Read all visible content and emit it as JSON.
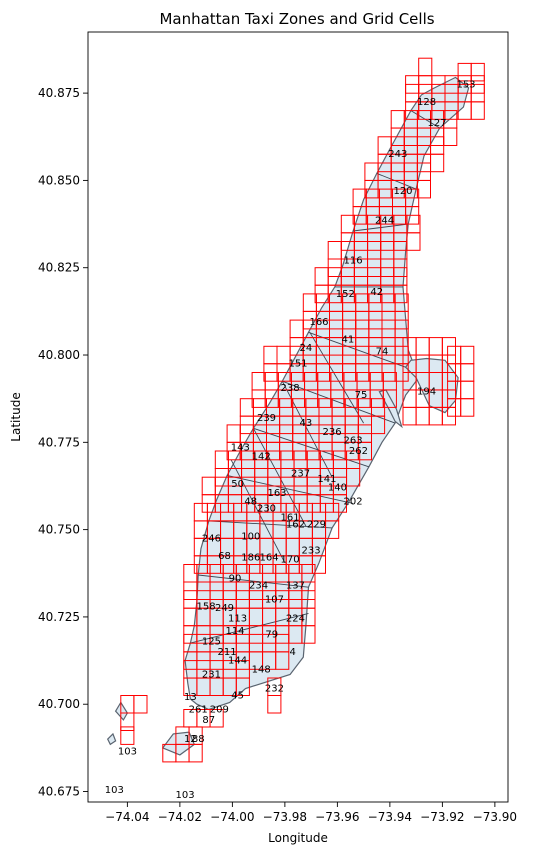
{
  "figure": {
    "title": "Manhattan Taxi Zones and Grid Cells",
    "xlabel": "Longitude",
    "ylabel": "Latitude"
  },
  "chart_data": {
    "type": "map",
    "title": "Manhattan Taxi Zones and Grid Cells",
    "xlabel": "Longitude",
    "ylabel": "Latitude",
    "xlim": [
      -74.055,
      -73.895
    ],
    "ylim": [
      40.672,
      40.8925
    ],
    "xticks": [
      {
        "value": -74.04,
        "label": "−74.04"
      },
      {
        "value": -74.02,
        "label": "−74.02"
      },
      {
        "value": -74.0,
        "label": "−74.00"
      },
      {
        "value": -73.98,
        "label": "−73.98"
      },
      {
        "value": -73.96,
        "label": "−73.96"
      },
      {
        "value": -73.94,
        "label": "−73.94"
      },
      {
        "value": -73.92,
        "label": "−73.92"
      },
      {
        "value": -73.9,
        "label": "−73.90"
      }
    ],
    "yticks": [
      {
        "value": 40.675,
        "label": "40.675"
      },
      {
        "value": 40.7,
        "label": "40.700"
      },
      {
        "value": 40.725,
        "label": "40.725"
      },
      {
        "value": 40.75,
        "label": "40.750"
      },
      {
        "value": 40.775,
        "label": "40.775"
      },
      {
        "value": 40.8,
        "label": "40.800"
      },
      {
        "value": 40.825,
        "label": "40.825"
      },
      {
        "value": 40.85,
        "label": "40.850"
      },
      {
        "value": 40.875,
        "label": "40.875"
      }
    ],
    "grid_cell_color": "#ff0000",
    "zone_fill_color": "#dce9f2",
    "zone_edge_color": "#5a6470",
    "zones": [
      {
        "id": "153",
        "x": -73.911,
        "y": 40.8775
      },
      {
        "id": "128",
        "x": -73.926,
        "y": 40.8725
      },
      {
        "id": "127",
        "x": -73.922,
        "y": 40.8665
      },
      {
        "id": "243",
        "x": -73.937,
        "y": 40.8575
      },
      {
        "id": "120",
        "x": -73.935,
        "y": 40.847
      },
      {
        "id": "244",
        "x": -73.942,
        "y": 40.8385
      },
      {
        "id": "116",
        "x": -73.954,
        "y": 40.827
      },
      {
        "id": "152",
        "x": -73.957,
        "y": 40.8175
      },
      {
        "id": "42",
        "x": -73.945,
        "y": 40.818
      },
      {
        "id": "166",
        "x": -73.967,
        "y": 40.8095
      },
      {
        "id": "41",
        "x": -73.956,
        "y": 40.8045
      },
      {
        "id": "24",
        "x": -73.972,
        "y": 40.802
      },
      {
        "id": "74",
        "x": -73.943,
        "y": 40.801
      },
      {
        "id": "151",
        "x": -73.975,
        "y": 40.7975
      },
      {
        "id": "238",
        "x": -73.978,
        "y": 40.7905
      },
      {
        "id": "75",
        "x": -73.951,
        "y": 40.7885
      },
      {
        "id": "194",
        "x": -73.926,
        "y": 40.7895
      },
      {
        "id": "239",
        "x": -73.987,
        "y": 40.782
      },
      {
        "id": "43",
        "x": -73.972,
        "y": 40.7805
      },
      {
        "id": "236",
        "x": -73.962,
        "y": 40.778
      },
      {
        "id": "263",
        "x": -73.954,
        "y": 40.7755
      },
      {
        "id": "143",
        "x": -73.997,
        "y": 40.7735
      },
      {
        "id": "262",
        "x": -73.952,
        "y": 40.7725
      },
      {
        "id": "142",
        "x": -73.989,
        "y": 40.771
      },
      {
        "id": "237",
        "x": -73.974,
        "y": 40.766
      },
      {
        "id": "141",
        "x": -73.964,
        "y": 40.7645
      },
      {
        "id": "50",
        "x": -73.998,
        "y": 40.763
      },
      {
        "id": "140",
        "x": -73.96,
        "y": 40.762
      },
      {
        "id": "163",
        "x": -73.983,
        "y": 40.7605
      },
      {
        "id": "48",
        "x": -73.993,
        "y": 40.758
      },
      {
        "id": "202",
        "x": -73.954,
        "y": 40.758
      },
      {
        "id": "230",
        "x": -73.987,
        "y": 40.756
      },
      {
        "id": "161",
        "x": -73.978,
        "y": 40.7535
      },
      {
        "id": "162",
        "x": -73.976,
        "y": 40.7515
      },
      {
        "id": "229",
        "x": -73.968,
        "y": 40.7515
      },
      {
        "id": "246",
        "x": -74.008,
        "y": 40.7475
      },
      {
        "id": "100",
        "x": -73.993,
        "y": 40.748
      },
      {
        "id": "233",
        "x": -73.97,
        "y": 40.744
      },
      {
        "id": "68",
        "x": -74.003,
        "y": 40.7425
      },
      {
        "id": "186",
        "x": -73.993,
        "y": 40.742
      },
      {
        "id": "164",
        "x": -73.986,
        "y": 40.742
      },
      {
        "id": "170",
        "x": -73.978,
        "y": 40.7415
      },
      {
        "id": "90",
        "x": -73.999,
        "y": 40.736
      },
      {
        "id": "234",
        "x": -73.99,
        "y": 40.734
      },
      {
        "id": "137",
        "x": -73.976,
        "y": 40.734
      },
      {
        "id": "107",
        "x": -73.984,
        "y": 40.73
      },
      {
        "id": "158",
        "x": -74.01,
        "y": 40.728
      },
      {
        "id": "249",
        "x": -74.003,
        "y": 40.7275
      },
      {
        "id": "113",
        "x": -73.998,
        "y": 40.7245
      },
      {
        "id": "224",
        "x": -73.976,
        "y": 40.7245
      },
      {
        "id": "114",
        "x": -73.999,
        "y": 40.721
      },
      {
        "id": "79",
        "x": -73.985,
        "y": 40.72
      },
      {
        "id": "125",
        "x": -74.008,
        "y": 40.718
      },
      {
        "id": "211",
        "x": -74.002,
        "y": 40.715
      },
      {
        "id": "4",
        "x": -73.977,
        "y": 40.715
      },
      {
        "id": "144",
        "x": -73.998,
        "y": 40.7125
      },
      {
        "id": "148",
        "x": -73.989,
        "y": 40.71
      },
      {
        "id": "231",
        "x": -74.008,
        "y": 40.7085
      },
      {
        "id": "232",
        "x": -73.984,
        "y": 40.7045
      },
      {
        "id": "45",
        "x": -73.998,
        "y": 40.7025
      },
      {
        "id": "13",
        "x": -74.016,
        "y": 40.702
      },
      {
        "id": "261",
        "x": -74.013,
        "y": 40.6985
      },
      {
        "id": "209",
        "x": -74.005,
        "y": 40.6985
      },
      {
        "id": "87",
        "x": -74.009,
        "y": 40.6955
      },
      {
        "id": "12",
        "x": -74.016,
        "y": 40.69
      },
      {
        "id": "88",
        "x": -74.013,
        "y": 40.69
      },
      {
        "id": "103",
        "x": -74.04,
        "y": 40.6865
      },
      {
        "id": "103",
        "x": -74.045,
        "y": 40.6755
      },
      {
        "id": "103",
        "x": -74.018,
        "y": 40.674
      }
    ]
  }
}
